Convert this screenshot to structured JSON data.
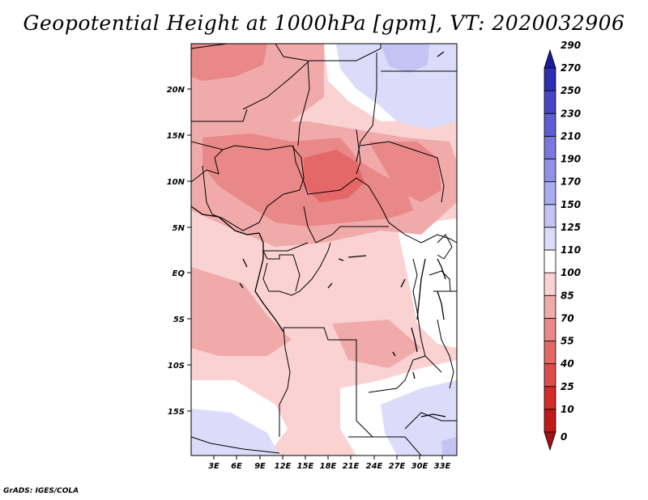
{
  "title": "Geopotential Height at 1000hPa [gpm], VT: 2020032906",
  "credit": "GrADS: IGES/COLA",
  "map": {
    "lon_labels": [
      "3E",
      "6E",
      "9E",
      "12E",
      "15E",
      "18E",
      "21E",
      "24E",
      "27E",
      "30E",
      "33E"
    ],
    "lat_labels": [
      "20N",
      "15N",
      "10N",
      "5N",
      "EQ",
      "5S",
      "10S",
      "15S"
    ]
  },
  "colorbar": {
    "levels": [
      "0",
      "10",
      "25",
      "40",
      "55",
      "70",
      "85",
      "100",
      "110",
      "125",
      "150",
      "170",
      "190",
      "210",
      "230",
      "250",
      "270",
      "290"
    ],
    "colors": [
      "#a50f15",
      "#c01818",
      "#d42a2a",
      "#df4a4a",
      "#e46868",
      "#e98888",
      "#f1aaaa",
      "#fad2d2",
      "#ffffff",
      "#dcdcfa",
      "#c4c4f4",
      "#ababef",
      "#9191e8",
      "#7878df",
      "#5e5ed4",
      "#4545c5",
      "#2e2eb2",
      "#1c1c98"
    ]
  }
}
